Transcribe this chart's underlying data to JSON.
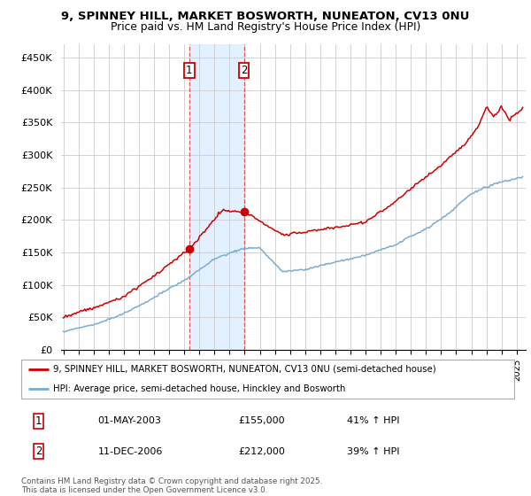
{
  "title_line1": "9, SPINNEY HILL, MARKET BOSWORTH, NUNEATON, CV13 0NU",
  "title_line2": "Price paid vs. HM Land Registry's House Price Index (HPI)",
  "ylabel_ticks": [
    "£0",
    "£50K",
    "£100K",
    "£150K",
    "£200K",
    "£250K",
    "£300K",
    "£350K",
    "£400K",
    "£450K"
  ],
  "ytick_values": [
    0,
    50000,
    100000,
    150000,
    200000,
    250000,
    300000,
    350000,
    400000,
    450000
  ],
  "ylim": [
    0,
    470000
  ],
  "sale1_year": 2003.33,
  "sale1_price": 155000,
  "sale1_date": "01-MAY-2003",
  "sale1_hpi": "41% ↑ HPI",
  "sale2_year": 2006.95,
  "sale2_price": 212000,
  "sale2_date": "11-DEC-2006",
  "sale2_hpi": "39% ↑ HPI",
  "legend_line1": "9, SPINNEY HILL, MARKET BOSWORTH, NUNEATON, CV13 0NU (semi-detached house)",
  "legend_line2": "HPI: Average price, semi-detached house, Hinckley and Bosworth",
  "footer": "Contains HM Land Registry data © Crown copyright and database right 2025.\nThis data is licensed under the Open Government Licence v3.0.",
  "line_color_red": "#cc0000",
  "line_color_blue": "#7aadcf",
  "shade_color": "#ddeeff",
  "background_color": "#ffffff",
  "grid_color": "#cccccc"
}
